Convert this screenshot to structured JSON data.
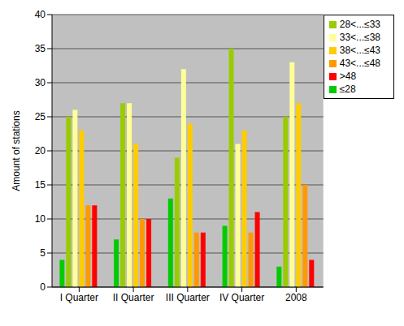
{
  "chart_data": {
    "type": "bar",
    "y_label": "Amount of stations",
    "categories": [
      "I Quarter",
      "II Quarter",
      "III Quarter",
      "IV Quarter",
      "2008"
    ],
    "series": [
      {
        "name": "≤28",
        "color": "#00cc00",
        "values": [
          4,
          7,
          13,
          9,
          3
        ]
      },
      {
        "name": "28<...≤33",
        "color": "#99cc00",
        "values": [
          25,
          27,
          19,
          35,
          25
        ]
      },
      {
        "name": "33<...≤38",
        "color": "#ffff99",
        "values": [
          26,
          27,
          32,
          21,
          33
        ]
      },
      {
        "name": "38<...≤43",
        "color": "#ffcc00",
        "values": [
          23,
          21,
          24,
          23,
          27
        ]
      },
      {
        "name": "43<...≤48",
        "color": "#ff9900",
        "values": [
          12,
          10,
          8,
          8,
          15
        ]
      },
      {
        "name": ">48",
        "color": "#ff0000",
        "values": [
          12,
          10,
          8,
          11,
          4
        ]
      }
    ],
    "ylim": [
      0,
      40
    ],
    "yticks": [
      0,
      5,
      10,
      15,
      20,
      25,
      30,
      35,
      40
    ],
    "grid": true,
    "legend": "top-right"
  }
}
